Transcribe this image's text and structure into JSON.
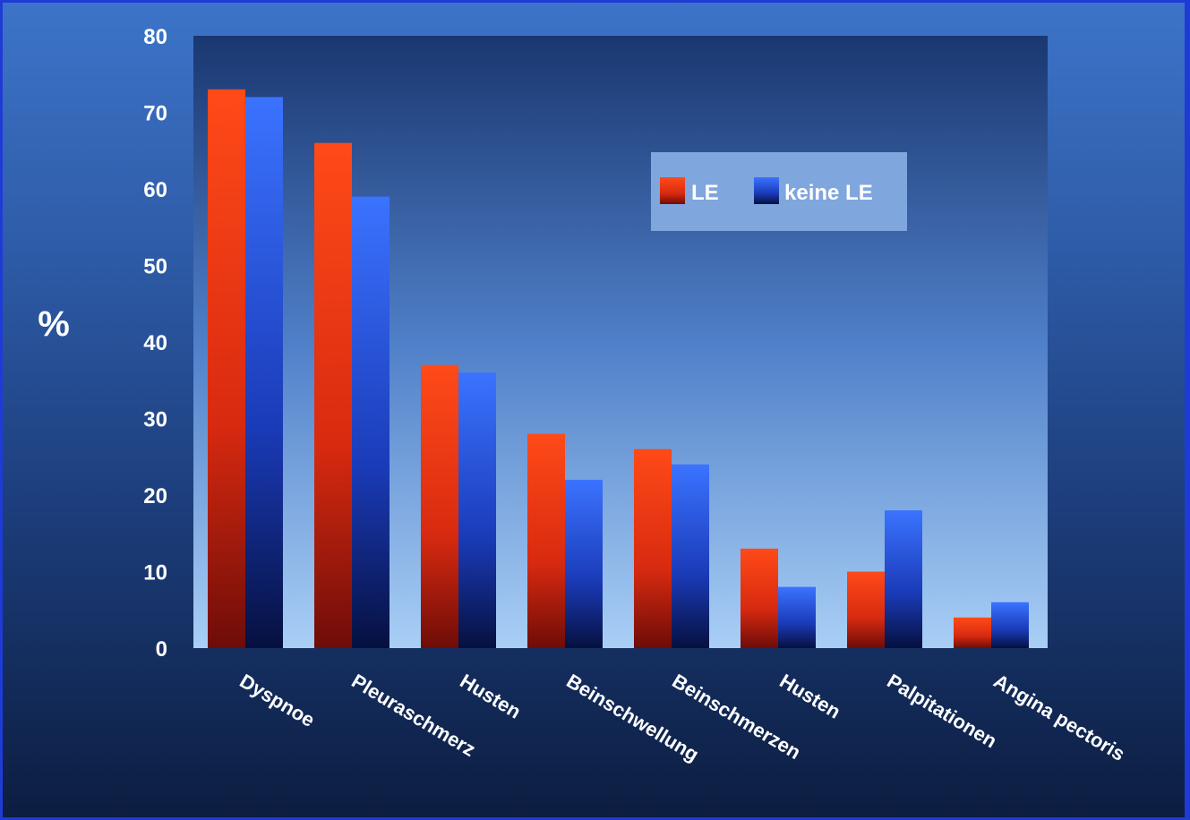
{
  "chart_data": {
    "type": "bar",
    "ylabel": "%",
    "ylim": [
      0,
      80
    ],
    "yticks": [
      "0",
      "10",
      "20",
      "30",
      "40",
      "50",
      "60",
      "70",
      "80"
    ],
    "categories": [
      "Dyspnoe",
      "Pleuraschmerz",
      "Husten",
      "Beinschwellung",
      "Beinschmerzen",
      "Husten",
      "Palpitationen",
      "Angina pectoris"
    ],
    "series": [
      {
        "name": "LE",
        "color": "#ff3a12",
        "values": [
          73,
          66,
          37,
          28,
          26,
          13,
          10,
          4
        ]
      },
      {
        "name": "keine LE",
        "color": "#2f63f0",
        "values": [
          72,
          59,
          36,
          22,
          24,
          8,
          18,
          6
        ]
      }
    ],
    "legend": "top-right",
    "grid": false
  }
}
